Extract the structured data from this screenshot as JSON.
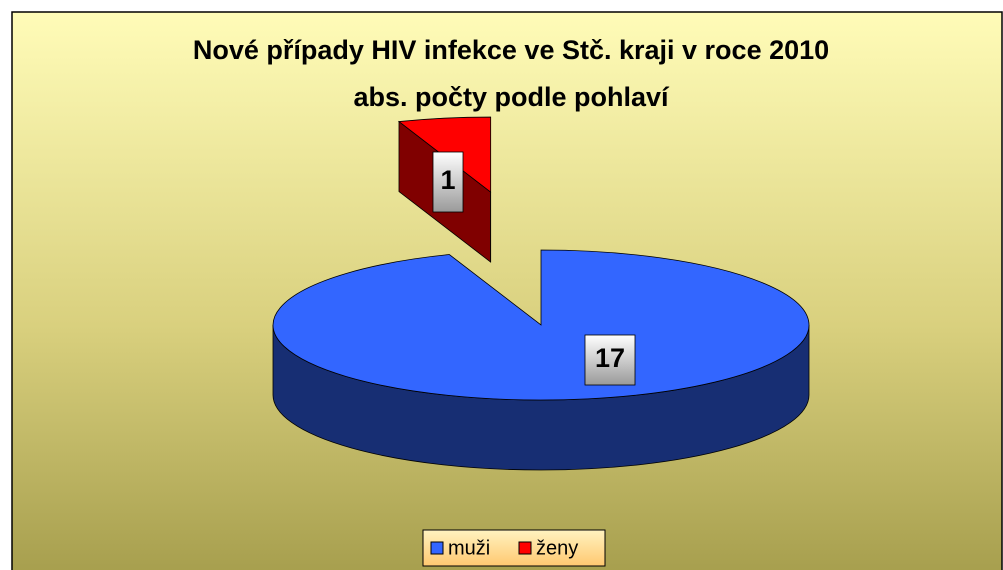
{
  "chart_data": {
    "type": "pie",
    "title": "Nové případy HIV infekce ve Stč. kraji v roce 2010",
    "subtitle": "abs. počty podle pohlaví",
    "categories": [
      "muži",
      "ženy"
    ],
    "values": [
      17,
      1
    ],
    "colors": [
      "#3366ff",
      "#ff0000"
    ],
    "legend": "bottom"
  }
}
